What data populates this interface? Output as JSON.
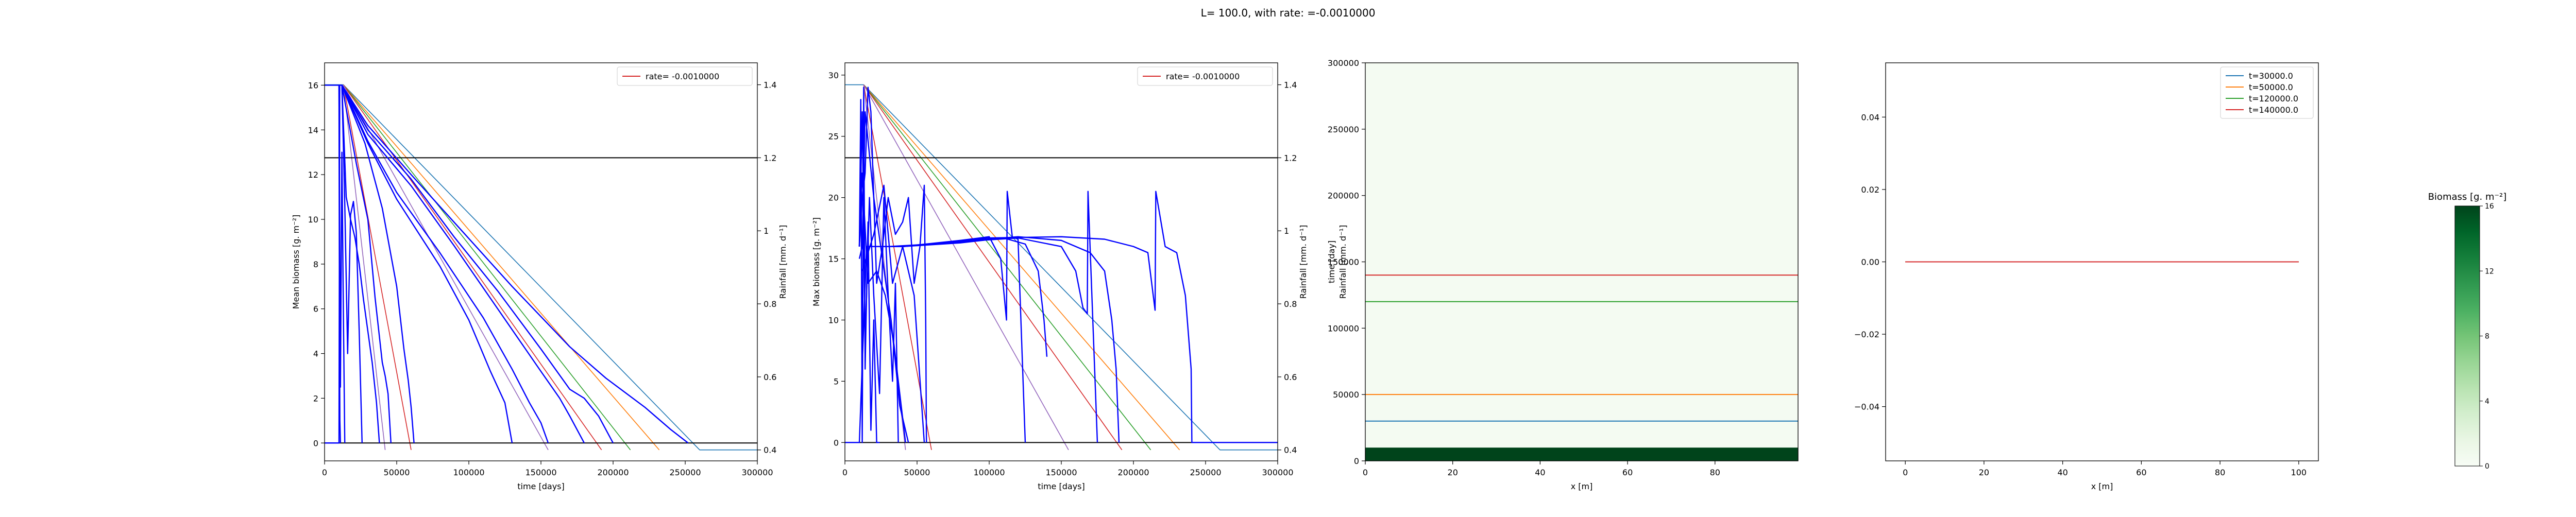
{
  "suptitle": "L= 100.0, with rate: =-0.0010000",
  "colors": {
    "c1": "#1f77b4",
    "c2": "#ff7f0e",
    "c3": "#2ca02c",
    "c4": "#d62728",
    "c5": "#9467bd",
    "blue": "#0000ff",
    "black": "#000000"
  },
  "chart_data": [
    {
      "type": "line",
      "xlabel": "time [days]",
      "ylabel": "Mean biomass [g. m⁻²]",
      "ylabel_right": "Rainfall [mm. d⁻¹]",
      "xlim": [
        0,
        300000
      ],
      "ylim": [
        -0.8,
        17
      ],
      "ylim_right": [
        0.37,
        1.46
      ],
      "xticks": [
        0,
        50000,
        100000,
        150000,
        200000,
        250000,
        300000
      ],
      "yticks": [
        0,
        2,
        4,
        6,
        8,
        10,
        12,
        14,
        16
      ],
      "yticks_right": [
        0.4,
        0.6,
        0.8,
        1.0,
        1.2,
        1.4
      ],
      "legend": [
        "rate= -0.0010000"
      ],
      "legend_position": "top-right",
      "hline_right": 1.2,
      "rain_series": [
        {
          "x": [
            0,
            10000,
            13000,
            260000,
            300000
          ],
          "y": [
            1.4,
            1.4,
            1.4,
            0.4,
            0.4
          ]
        },
        {
          "x": [
            13000,
            232000
          ],
          "y": [
            1.4,
            0.4
          ]
        },
        {
          "x": [
            13000,
            212000
          ],
          "y": [
            1.4,
            0.4
          ]
        },
        {
          "x": [
            13000,
            192000
          ],
          "y": [
            1.4,
            0.4
          ]
        },
        {
          "x": [
            13000,
            155000
          ],
          "y": [
            1.4,
            0.4
          ]
        },
        {
          "x": [
            13000,
            60000
          ],
          "y": [
            1.4,
            0.4
          ]
        },
        {
          "x": [
            13000,
            42000
          ],
          "y": [
            1.4,
            0.4
          ]
        }
      ],
      "biomass_series": [
        {
          "x": [
            0,
            12000,
            30000,
            60000,
            95000,
            130000,
            170000,
            195000,
            222000,
            240000,
            252000
          ],
          "y": [
            16,
            16,
            14.2,
            12.0,
            9.5,
            7.0,
            4.3,
            2.9,
            1.6,
            0.6,
            0.0
          ]
        },
        {
          "x": [
            12000,
            30000,
            60000,
            90000,
            120000,
            150000,
            170000,
            180000,
            190000,
            200000
          ],
          "y": [
            16,
            14.0,
            11.8,
            9.2,
            6.8,
            4.2,
            2.4,
            2.0,
            1.2,
            0.0
          ]
        },
        {
          "x": [
            12000,
            30000,
            60000,
            90000,
            120000,
            150000,
            163000,
            170000,
            180000
          ],
          "y": [
            16,
            13.8,
            11.5,
            8.8,
            6.0,
            3.2,
            2.0,
            1.2,
            0.0
          ]
        },
        {
          "x": [
            12000,
            30000,
            50000,
            80000,
            110000,
            130000,
            142000,
            150000,
            155000
          ],
          "y": [
            16,
            13.5,
            11.2,
            8.5,
            5.6,
            3.3,
            1.8,
            0.9,
            0.0
          ]
        },
        {
          "x": [
            12000,
            30000,
            50000,
            80000,
            100000,
            115000,
            125000,
            130000
          ],
          "y": [
            16,
            13.4,
            10.9,
            7.9,
            5.5,
            3.2,
            1.8,
            0.0
          ]
        },
        {
          "x": [
            12000,
            28000,
            40000,
            50000,
            55000,
            58000,
            60000,
            62000
          ],
          "y": [
            16,
            13.4,
            10.5,
            7.0,
            4.2,
            2.8,
            1.6,
            0.0
          ]
        },
        {
          "x": [
            12000,
            22000,
            30000,
            35000,
            40000,
            42000,
            44000,
            46000
          ],
          "y": [
            16,
            12.5,
            10.0,
            6.5,
            3.6,
            3.0,
            2.2,
            0.0
          ]
        },
        {
          "x": [
            12000,
            15000,
            18000,
            21000,
            24000,
            27000,
            30000,
            33000,
            36000,
            38000
          ],
          "y": [
            16,
            11.0,
            10.0,
            9.2,
            8.0,
            6.4,
            5.0,
            3.6,
            1.8,
            0.0
          ]
        },
        {
          "x": [
            12000,
            14000,
            16000,
            18000,
            20000,
            22000,
            24000,
            26000
          ],
          "y": [
            16,
            10.7,
            4.0,
            10.2,
            10.8,
            9.4,
            5.0,
            0.0
          ]
        },
        {
          "x": [
            10000,
            11000,
            12000,
            13000,
            14000
          ],
          "y": [
            16,
            2.5,
            13.0,
            6.0,
            0.0
          ]
        },
        {
          "x": [
            10000,
            10300,
            10600,
            11000
          ],
          "y": [
            16,
            6.0,
            1.0,
            0.0
          ]
        },
        {
          "x": [
            0,
            10000,
            10500
          ],
          "y": [
            0,
            0,
            16
          ]
        }
      ]
    },
    {
      "type": "line",
      "xlabel": "time [days]",
      "ylabel": "Max biomass [g. m⁻²]",
      "ylabel_right": "Rainfall [mm. d⁻¹]",
      "xlim": [
        0,
        300000
      ],
      "ylim": [
        -1.5,
        31
      ],
      "ylim_right": [
        0.37,
        1.46
      ],
      "xticks": [
        0,
        50000,
        100000,
        150000,
        200000,
        250000,
        300000
      ],
      "yticks": [
        0,
        5,
        10,
        15,
        20,
        25,
        30
      ],
      "yticks_right": [
        0.4,
        0.6,
        0.8,
        1.0,
        1.2,
        1.4
      ],
      "legend": [
        "rate= -0.0010000"
      ],
      "legend_position": "top-right",
      "hline_right": 1.2,
      "rain_series": [
        {
          "x": [
            0,
            10000,
            13000,
            260000,
            300000
          ],
          "y": [
            1.4,
            1.4,
            1.4,
            0.4,
            0.4
          ]
        },
        {
          "x": [
            13000,
            232000
          ],
          "y": [
            1.4,
            0.4
          ]
        },
        {
          "x": [
            13000,
            212000
          ],
          "y": [
            1.4,
            0.4
          ]
        },
        {
          "x": [
            13000,
            192000
          ],
          "y": [
            1.4,
            0.4
          ]
        },
        {
          "x": [
            13000,
            155000
          ],
          "y": [
            1.4,
            0.4
          ]
        },
        {
          "x": [
            13000,
            60000
          ],
          "y": [
            1.4,
            0.4
          ]
        },
        {
          "x": [
            13000,
            42000
          ],
          "y": [
            1.4,
            0.4
          ]
        }
      ],
      "biomass_series": [
        {
          "x": [
            0,
            10000,
            15000,
            30000,
            60000,
            100000,
            150000,
            180000,
            200000,
            210000,
            215000,
            215500,
            222000,
            230000,
            236000,
            240000,
            240500,
            260000,
            300000
          ],
          "y": [
            0,
            0,
            16,
            16,
            16.2,
            16.7,
            16.8,
            16.6,
            16,
            15.5,
            10.8,
            20.5,
            16,
            15.5,
            12,
            6,
            0,
            0,
            0
          ]
        },
        {
          "x": [
            15000,
            40000,
            80000,
            120000,
            150000,
            170000,
            180000,
            185000,
            188000,
            190000
          ],
          "y": [
            16,
            16,
            16.4,
            16.8,
            16.5,
            15.5,
            14,
            10,
            6,
            0
          ]
        },
        {
          "x": [
            15000,
            40000,
            80000,
            120000,
            150000,
            160000,
            165000,
            168000,
            168500,
            175000
          ],
          "y": [
            16,
            16,
            16.4,
            16.7,
            16,
            14,
            11,
            10.5,
            20.5,
            0
          ]
        },
        {
          "x": [
            15000,
            40000,
            80000,
            110000,
            125000,
            134000,
            138000,
            140000
          ],
          "y": [
            16,
            16,
            16.3,
            16.7,
            16.2,
            14,
            10,
            7
          ]
        },
        {
          "x": [
            15000,
            40000,
            80000,
            100000,
            108000,
            112000,
            112500,
            116000,
            120000,
            125000
          ],
          "y": [
            16,
            16,
            16.5,
            16.8,
            15,
            10,
            20.5,
            16.8,
            16.6,
            0
          ]
        },
        {
          "x": [
            10000,
            12000,
            14000,
            16000,
            18000,
            20000,
            22000,
            26000,
            30000,
            35000,
            40000,
            44000,
            48000,
            52000,
            55000,
            56000,
            56500
          ],
          "y": [
            16,
            20,
            22,
            29,
            27,
            20,
            13,
            16,
            20,
            17,
            18,
            20,
            13,
            16,
            21,
            10,
            0
          ]
        },
        {
          "x": [
            10000,
            12000,
            14000,
            20000,
            26000,
            32000,
            38000,
            44000
          ],
          "y": [
            15,
            16,
            27,
            20,
            15,
            10,
            3,
            0
          ]
        },
        {
          "x": [
            10000,
            12000,
            16000,
            22000,
            28000,
            34000,
            38000,
            42000
          ],
          "y": [
            16,
            22,
            13,
            14,
            12,
            8,
            4,
            0
          ]
        },
        {
          "x": [
            10000,
            12000,
            14000,
            17000,
            20000,
            24000,
            27000,
            30000,
            33000,
            35000,
            37000
          ],
          "y": [
            16,
            27,
            8,
            20,
            12,
            4,
            20,
            12,
            5,
            13,
            0
          ]
        },
        {
          "x": [
            10000,
            11000,
            12000,
            13000,
            14000,
            16000,
            18000,
            20000,
            22000,
            24000
          ],
          "y": [
            16,
            28,
            0,
            29,
            6,
            18,
            1,
            10,
            0,
            0
          ]
        },
        {
          "x": [
            12000,
            20000,
            27000,
            33000,
            40000,
            48000,
            55000
          ],
          "y": [
            14,
            17,
            21,
            13,
            16,
            12,
            0
          ]
        }
      ]
    },
    {
      "type": "heatmap",
      "xlabel": "x [m]",
      "ylabel": "time [day]",
      "ylabel_right": "Rainfall [mm. d⁻¹]",
      "xlim": [
        0,
        99
      ],
      "ylim": [
        0,
        300000
      ],
      "xticks": [
        0,
        20,
        40,
        60,
        80
      ],
      "yticks": [
        0,
        50000,
        100000,
        150000,
        200000,
        250000,
        300000
      ],
      "bands": [
        {
          "t_from": 0,
          "t_to": 10000,
          "biomass": 16
        }
      ],
      "background_biomass": 0.3,
      "time_markers": [
        {
          "t": 30000,
          "color": "#1f77b4"
        },
        {
          "t": 50000,
          "color": "#ff7f0e"
        },
        {
          "t": 120000,
          "color": "#2ca02c"
        },
        {
          "t": 140000,
          "color": "#d62728"
        }
      ]
    },
    {
      "type": "line",
      "xlabel": "x [m]",
      "xlim": [
        -5,
        105
      ],
      "ylim": [
        -0.055,
        0.055
      ],
      "xticks": [
        0,
        20,
        40,
        60,
        80,
        100
      ],
      "yticks": [
        -0.04,
        -0.02,
        0.0,
        0.02,
        0.04
      ],
      "ytick_labels": [
        "−0.04",
        "−0.02",
        "0.00",
        "0.02",
        "0.04"
      ],
      "legend_position": "top-right",
      "series": [
        {
          "name": "t=30000.0",
          "color": "#1f77b4",
          "x": [
            0,
            100
          ],
          "y": [
            0,
            0
          ]
        },
        {
          "name": "t=50000.0",
          "color": "#ff7f0e",
          "x": [
            0,
            100
          ],
          "y": [
            0,
            0
          ]
        },
        {
          "name": "t=120000.0",
          "color": "#2ca02c",
          "x": [
            0,
            100
          ],
          "y": [
            0,
            0
          ]
        },
        {
          "name": "t=140000.0",
          "color": "#d62728",
          "x": [
            0,
            100
          ],
          "y": [
            0,
            0
          ]
        }
      ]
    }
  ],
  "colorbar": {
    "title": "Biomass [g. m⁻²]",
    "min": 0,
    "max": 16,
    "ticks": [
      0,
      4,
      8,
      12,
      16
    ],
    "colormap": "Greens"
  }
}
